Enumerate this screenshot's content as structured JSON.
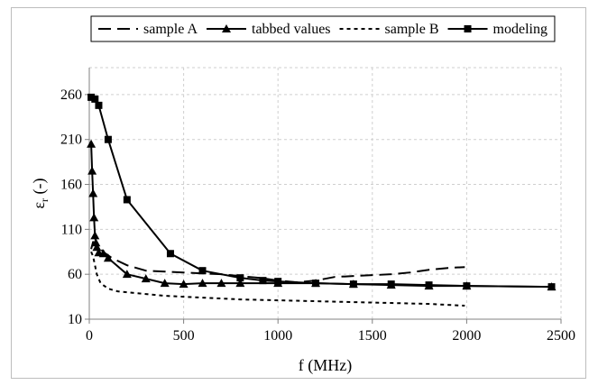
{
  "chart_data": {
    "type": "line",
    "title": "",
    "xlabel": "f (MHz)",
    "ylabel": "εr (-)",
    "ylabel_parts": {
      "symbol": "ε",
      "subscript": "r",
      "suffix": " (-)"
    },
    "xlim": [
      0,
      2500
    ],
    "ylim": [
      10,
      290
    ],
    "xticks": [
      0,
      500,
      1000,
      1500,
      2000,
      2500
    ],
    "xtick_labels": [
      "0",
      "500",
      "1000",
      "1500",
      "2000",
      "2500"
    ],
    "yticks": [
      10,
      60,
      110,
      160,
      210,
      260
    ],
    "ytick_labels": [
      "10",
      "60",
      "110",
      "160",
      "210",
      "260"
    ],
    "grid": true,
    "grid_style": "dashed light gray",
    "legend_position": "top",
    "series": [
      {
        "name": "sample A",
        "line_style": "long-dash",
        "marker": "none",
        "color": "#000000",
        "x": [
          10,
          20,
          30,
          50,
          80,
          120,
          200,
          300,
          500,
          700,
          900,
          1000,
          1100,
          1200,
          1300,
          1400,
          1500,
          1600,
          1700,
          1800,
          1900,
          1990
        ],
        "y": [
          88,
          96,
          94,
          90,
          84,
          78,
          70,
          64,
          62,
          60,
          56,
          53,
          51,
          53,
          57,
          58,
          59,
          60,
          62,
          65,
          67,
          68
        ]
      },
      {
        "name": "tabbed values",
        "line_style": "solid",
        "marker": "triangle",
        "color": "#000000",
        "x": [
          10,
          15,
          20,
          25,
          30,
          35,
          40,
          50,
          75,
          100,
          200,
          300,
          400,
          500,
          600,
          700,
          800,
          1000,
          1200,
          1400,
          1600,
          1800,
          2000,
          2450
        ],
        "y": [
          205,
          175,
          150,
          123,
          103,
          95,
          90,
          84,
          83,
          78,
          60,
          55,
          50,
          49,
          50,
          50,
          50,
          50,
          50,
          49,
          48,
          47,
          47,
          46
        ]
      },
      {
        "name": "sample B",
        "line_style": "short-dash",
        "marker": "none",
        "color": "#000000",
        "x": [
          10,
          20,
          30,
          40,
          60,
          100,
          150,
          200,
          300,
          400,
          500,
          600,
          800,
          1000,
          1200,
          1400,
          1600,
          1800,
          1990
        ],
        "y": [
          85,
          80,
          70,
          60,
          50,
          44,
          41,
          40,
          38,
          36,
          35,
          34,
          32,
          31,
          30,
          29,
          28,
          27,
          25
        ]
      },
      {
        "name": "modeling",
        "line_style": "solid",
        "marker": "square",
        "color": "#000000",
        "x": [
          10,
          30,
          50,
          100,
          200,
          430,
          600,
          800,
          920,
          1000,
          1200,
          1400,
          1600,
          1800,
          2000,
          2450
        ],
        "y": [
          257,
          255,
          248,
          210,
          143,
          83,
          64,
          56,
          53,
          52,
          50,
          49,
          49,
          48,
          47,
          46
        ]
      }
    ]
  }
}
